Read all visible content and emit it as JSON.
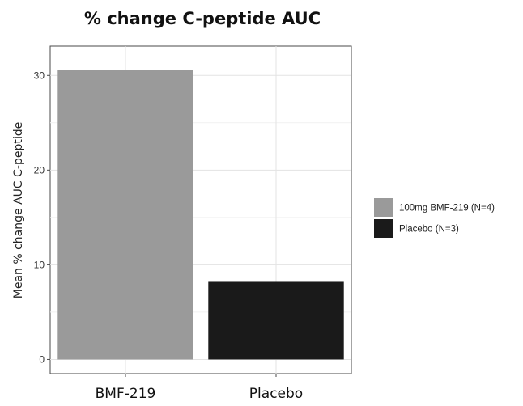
{
  "chart_data": {
    "type": "bar",
    "title": "% change C-peptide AUC",
    "xlabel": "",
    "ylabel": "Mean % change AUC C-peptide",
    "categories": [
      "BMF-219",
      "Placebo"
    ],
    "values": [
      30.6,
      8.2
    ],
    "bar_colors": [
      "#9a9a9a",
      "#1a1a1a"
    ],
    "ylim": [
      -1.5,
      33.1
    ],
    "yticks": [
      0,
      10,
      20,
      30
    ],
    "grid": true,
    "legend": {
      "position": "right",
      "entries": [
        {
          "label": "100mg BMF-219 (N=4)",
          "color": "#9a9a9a"
        },
        {
          "label": "Placebo (N=3)",
          "color": "#1a1a1a"
        }
      ]
    }
  }
}
